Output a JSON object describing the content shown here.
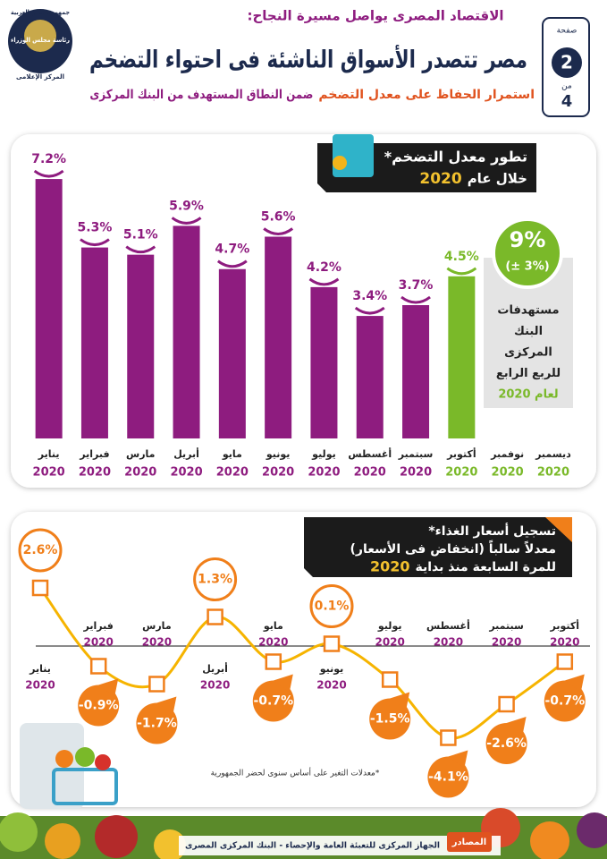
{
  "header": {
    "kicker": "الاقتصاد المصرى يواصل مسيرة النجاح:",
    "title": "مصر تتصدر الأسواق الناشئة فى احتواء التضخم",
    "subtitle_part1": "استمرار الحفاظ على معدل التضخم",
    "subtitle_part2": "ضمن النطاق المستهدف من البنك المركزى",
    "page_word": "صفحة",
    "page_number": 2,
    "of_word": "من",
    "page_total": 4,
    "logo_lines": [
      "جمهورية مصر العربية",
      "رئاسة مجلس الوزراء",
      "المركز الإعلامى"
    ]
  },
  "chart_data": [
    {
      "type": "bar",
      "title": "تطور معدل التضخم*",
      "subtitle": "خلال عام",
      "subtitle_year": "2020",
      "categories": [
        "يناير",
        "فبراير",
        "مارس",
        "أبريل",
        "مايو",
        "يونيو",
        "يوليو",
        "أغسطس",
        "سبتمبر",
        "أكتوبر",
        "نوفمبر",
        "ديسمبر"
      ],
      "category_year": "2020",
      "values": [
        7.2,
        5.3,
        5.1,
        5.9,
        4.7,
        5.6,
        4.2,
        3.4,
        3.7,
        4.5,
        null,
        null
      ],
      "value_labels": [
        "7.2%",
        "5.3%",
        "5.1%",
        "5.9%",
        "4.7%",
        "5.6%",
        "4.2%",
        "3.4%",
        "3.7%",
        "4.5%",
        null,
        null
      ],
      "colors": [
        "#8e1c7f",
        "#8e1c7f",
        "#8e1c7f",
        "#8e1c7f",
        "#8e1c7f",
        "#8e1c7f",
        "#8e1c7f",
        "#8e1c7f",
        "#8e1c7f",
        "#7ab929",
        "#7ab929",
        "#7ab929"
      ],
      "ylim": [
        0,
        7.5
      ],
      "target_label": "9%",
      "target_range": "(± 3%)",
      "target_lines": [
        "مستهدفات",
        "البنك",
        "المركزى",
        "للربع الرابع",
        "لعام 2020"
      ],
      "target_color": "#7ab929"
    },
    {
      "type": "line",
      "title_lines": [
        "تسجيل أسعار الغذاء*",
        "معدلاً سالباً (انخفاض فى الأسعار)",
        "للمرة السابعة منذ بداية"
      ],
      "title_year": "2020",
      "categories": [
        "يناير",
        "فبراير",
        "مارس",
        "أبريل",
        "مايو",
        "يونيو",
        "يوليو",
        "أغسطس",
        "سبتمبر",
        "أكتوبر"
      ],
      "category_year": "2020",
      "values": [
        2.6,
        -0.9,
        -1.7,
        1.3,
        -0.7,
        0.1,
        -1.5,
        -4.1,
        -2.6,
        -0.7
      ],
      "value_labels": [
        "2.6%",
        "-0.9%",
        "-1.7%",
        "1.3%",
        "-0.7%",
        "0.1%",
        "-1.5%",
        "-4.1%",
        "-2.6%",
        "-0.7%"
      ],
      "line_color": "#f6b400",
      "marker_color": "#f07f1a",
      "ylim": [
        -4.5,
        3.2
      ],
      "footnote": "*معدلات التغير على أساس سنوى لحضر الجمهورية"
    }
  ],
  "footer": {
    "sources_label": "المصادر",
    "sources": "الجهاز المركزى للتعبئة العامة والإحصاء - البنك المركزى المصرى"
  }
}
